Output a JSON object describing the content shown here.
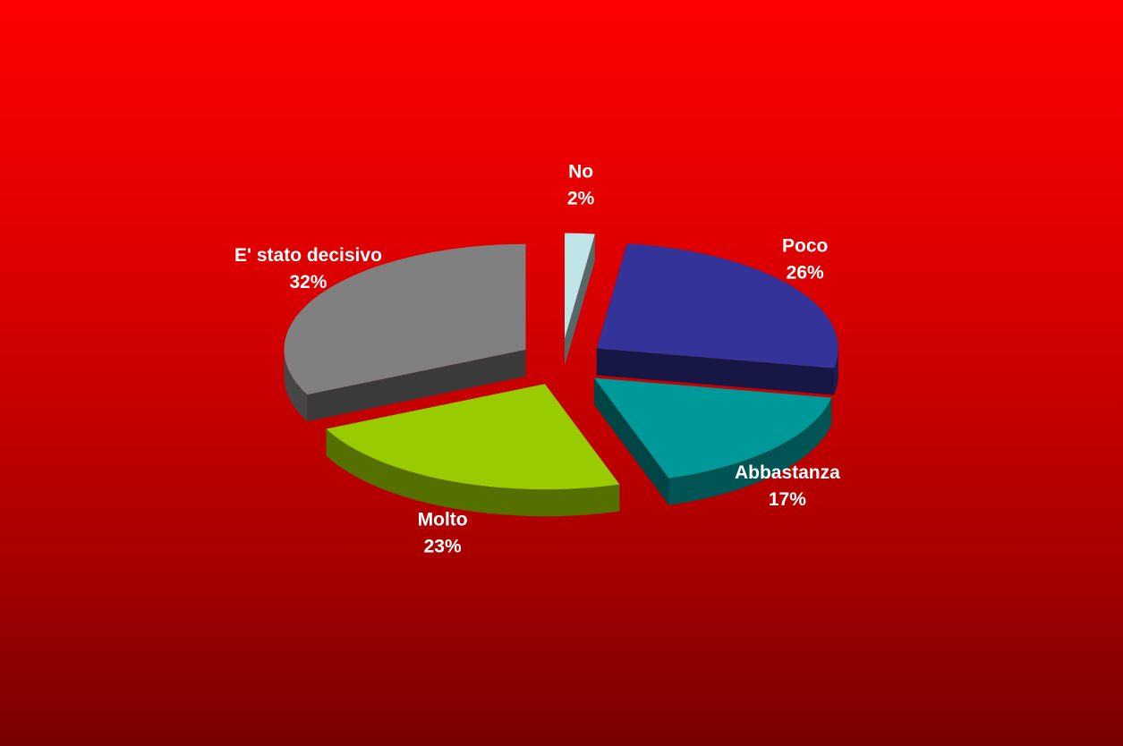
{
  "chart_data": {
    "type": "pie",
    "style": "3d-exploded",
    "title": "",
    "legend": "none",
    "slices": [
      {
        "name": "No",
        "value": 2,
        "label": "2%",
        "color": "#bfe4e8"
      },
      {
        "name": "Poco",
        "value": 26,
        "label": "26%",
        "color": "#333399"
      },
      {
        "name": "Abbastanza",
        "value": 17,
        "label": "17%",
        "color": "#009999"
      },
      {
        "name": "Molto",
        "value": 23,
        "label": "23%",
        "color": "#99cc00"
      },
      {
        "name": "E' stato decisivo",
        "value": 32,
        "label": "32%",
        "color": "#808080"
      }
    ]
  }
}
